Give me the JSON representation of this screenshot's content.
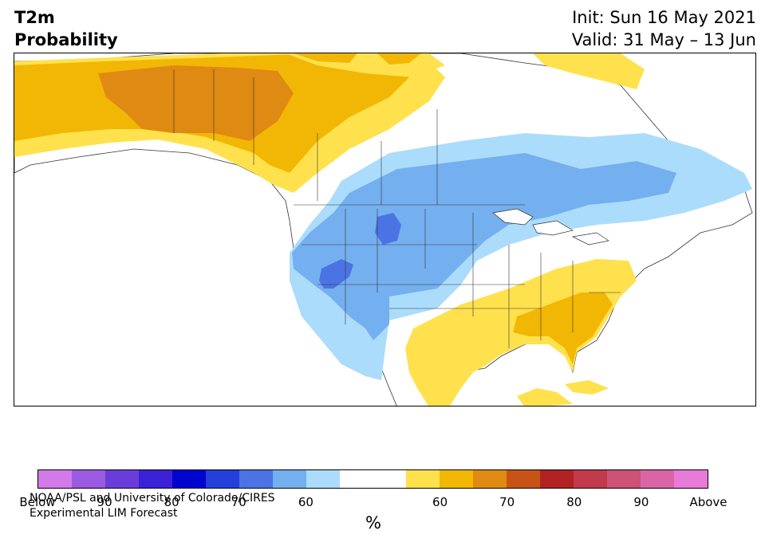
{
  "title": {
    "line1": "T2m",
    "line2": "Probability"
  },
  "dates": {
    "init": "Init: Sun 16 May 2021",
    "valid": "Valid: 31 May – 13 Jun"
  },
  "credit": {
    "line1": "NOAA/PSL and University of Colorado/CIRES",
    "line2": "Experimental LIM Forecast"
  },
  "map": {
    "region": "North America",
    "colors": {
      "above_50_60": "#ffe14d",
      "above_60_70": "#f2b705",
      "above_70_80": "#df8a12",
      "below_50_60": "#abdcfb",
      "below_60_70": "#74afef",
      "below_70_80": "#4b73e4",
      "land": "#ffffff",
      "boundary": "#333333"
    }
  },
  "colorbar": {
    "colors": [
      "#d27aea",
      "#9a5be0",
      "#6a3ddb",
      "#3b22d6",
      "#0004cf",
      "#2340db",
      "#4b73e4",
      "#74afef",
      "#abdcfb",
      "#ffffff",
      "#ffffff",
      "#ffe14d",
      "#f2b705",
      "#df8a12",
      "#c85316",
      "#b22222",
      "#c23b4d",
      "#cc5276",
      "#d965a6",
      "#e87ad8"
    ],
    "tick_labels": [
      "Below",
      "90",
      "80",
      "70",
      "60",
      "",
      "60",
      "70",
      "80",
      "90",
      "Above"
    ],
    "unit": "%"
  }
}
